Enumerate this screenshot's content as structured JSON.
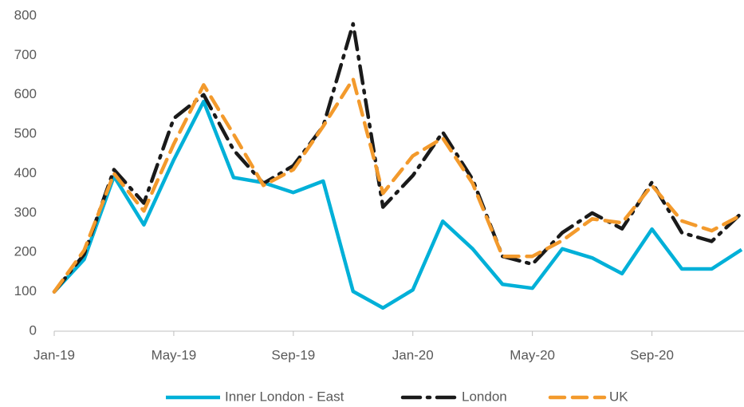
{
  "chart_data": {
    "type": "line",
    "categories": [
      "Jan-19",
      null,
      null,
      null,
      "May-19",
      null,
      null,
      null,
      "Sep-19",
      null,
      null,
      null,
      "Jan-20",
      null,
      null,
      null,
      "May-20",
      null,
      null,
      null,
      "Sep-20",
      null,
      null,
      null
    ],
    "series": [
      {
        "name": "Inner London - East",
        "color": "#00b0d8",
        "dash": "solid",
        "values": [
          100,
          182,
          393,
          270,
          435,
          583,
          390,
          377,
          352,
          381,
          101,
          59,
          105,
          279,
          209,
          119,
          109,
          209,
          186,
          146,
          259,
          158,
          158,
          207
        ]
      },
      {
        "name": "London",
        "color": "#1a1a1a",
        "dash": "dashdot",
        "values": [
          100,
          195,
          410,
          325,
          540,
          600,
          460,
          375,
          420,
          520,
          780,
          315,
          395,
          505,
          385,
          190,
          170,
          250,
          300,
          260,
          378,
          250,
          228,
          300
        ]
      },
      {
        "name": "UK",
        "color": "#f39a2c",
        "dash": "dash",
        "values": [
          100,
          205,
          400,
          305,
          475,
          625,
          500,
          370,
          410,
          520,
          640,
          350,
          445,
          490,
          375,
          190,
          190,
          230,
          285,
          275,
          370,
          280,
          255,
          295
        ]
      }
    ],
    "ylim": [
      0,
      800
    ],
    "yticks": [
      0,
      100,
      200,
      300,
      400,
      500,
      600,
      700,
      800
    ],
    "grid": false
  }
}
